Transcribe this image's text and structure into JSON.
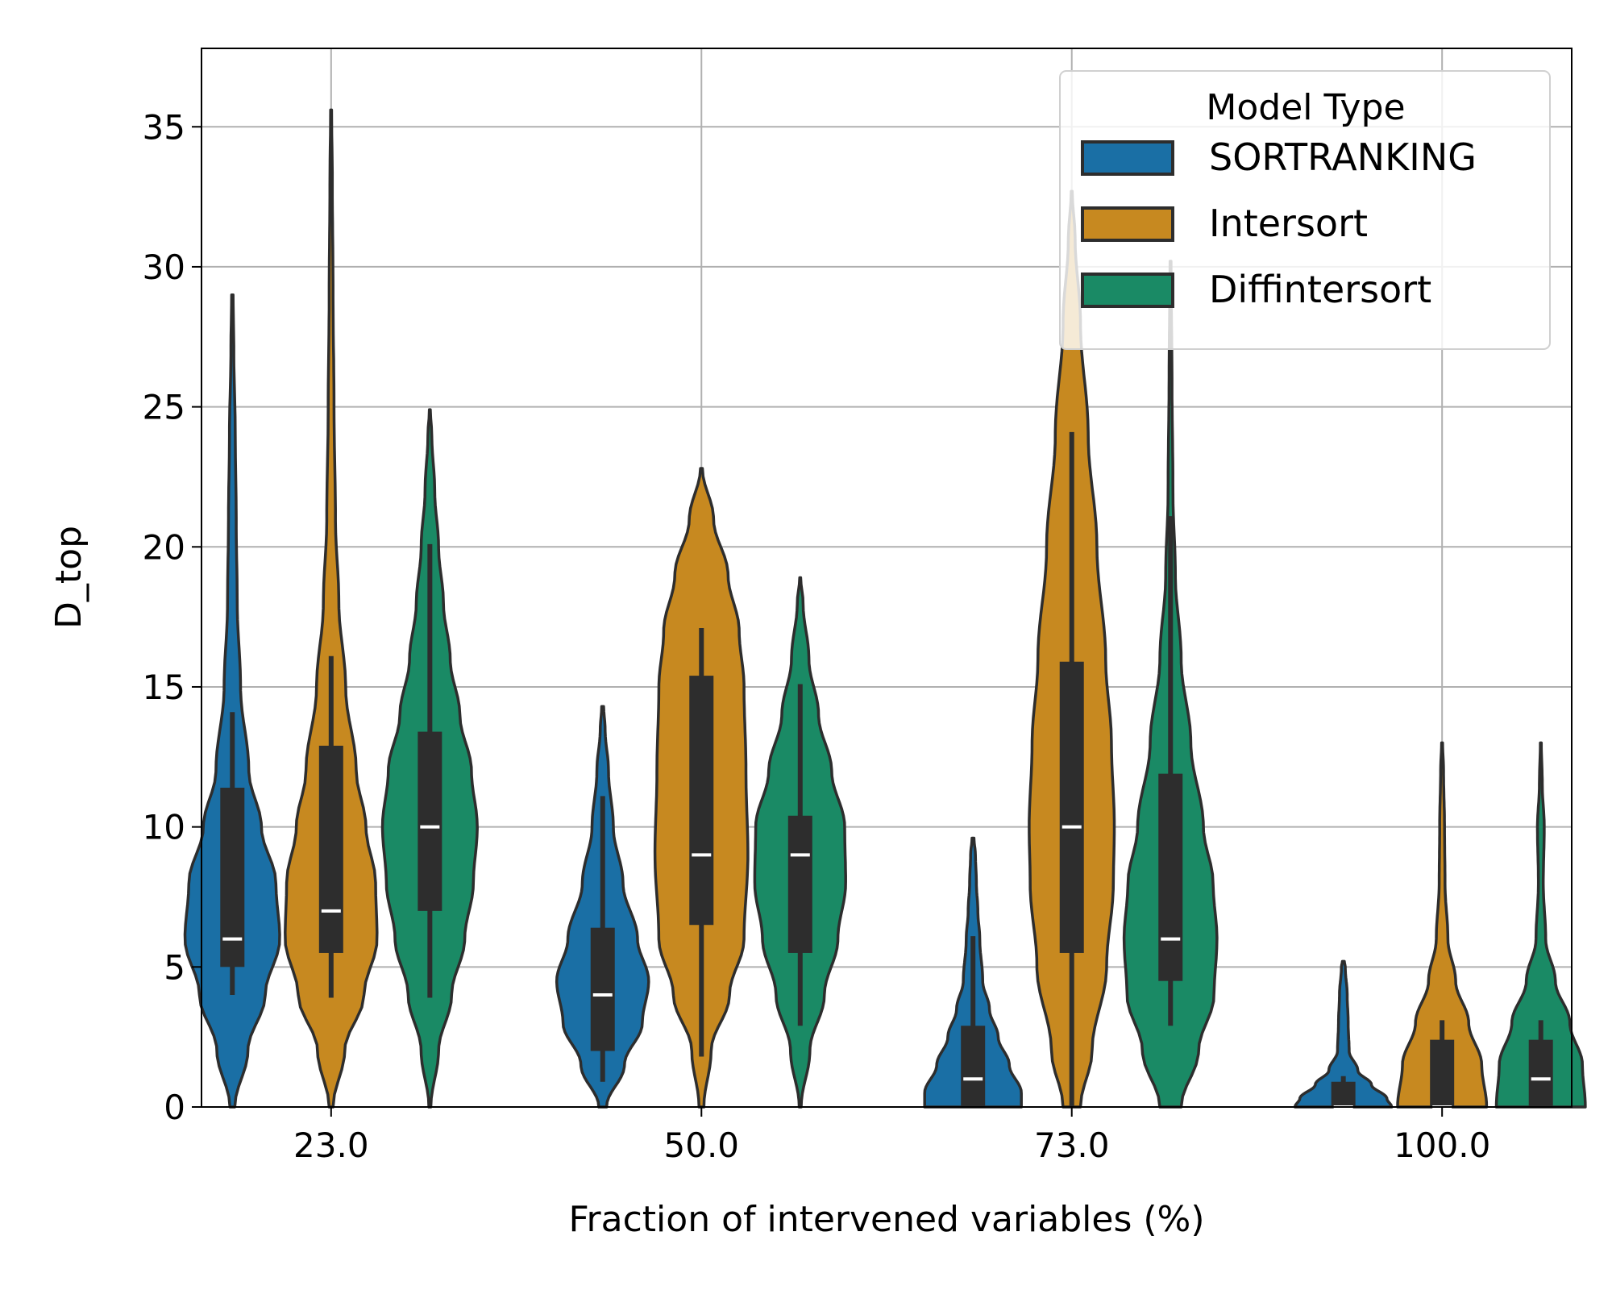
{
  "chart_data": {
    "type": "violin",
    "title": "",
    "xlabel": "Fraction of intervened variables (%)",
    "ylabel": "D_top",
    "ylim": [
      0,
      37.8
    ],
    "yticks": [
      0,
      5,
      10,
      15,
      20,
      25,
      30,
      35
    ],
    "grid": true,
    "categories": [
      "23.0",
      "50.0",
      "73.0",
      "100.0"
    ],
    "legend": {
      "title": "Model Type",
      "position": "top-right"
    },
    "series": [
      {
        "name": "SORTRANKING",
        "color": "#1a6fa5",
        "groups": [
          {
            "min": 4,
            "q1": 5,
            "median": 6,
            "q3": 11.4,
            "max": 14.1,
            "violin_min": 0,
            "violin_max": 29,
            "profile": [
              [
                0,
                0.05
              ],
              [
                2,
                0.32
              ],
              [
                4,
                0.68
              ],
              [
                6,
                0.98
              ],
              [
                8,
                0.9
              ],
              [
                10,
                0.6
              ],
              [
                12,
                0.34
              ],
              [
                15,
                0.17
              ],
              [
                18,
                0.1
              ],
              [
                21,
                0.08
              ],
              [
                24,
                0.06
              ],
              [
                27,
                0.03
              ],
              [
                29,
                0.015
              ]
            ]
          },
          {
            "min": 0.9,
            "q1": 2,
            "median": 4,
            "q3": 6.4,
            "max": 11.1,
            "violin_min": 0,
            "violin_max": 14.3,
            "profile": [
              [
                0,
                0.08
              ],
              [
                1.5,
                0.45
              ],
              [
                3,
                0.82
              ],
              [
                4.5,
                0.95
              ],
              [
                6,
                0.72
              ],
              [
                8,
                0.42
              ],
              [
                10,
                0.22
              ],
              [
                12,
                0.12
              ],
              [
                13.5,
                0.05
              ],
              [
                14.3,
                0.02
              ]
            ]
          },
          {
            "min": 0,
            "q1": 0,
            "median": 1,
            "q3": 2.9,
            "max": 6.1,
            "violin_min": 0,
            "violin_max": 9.6,
            "profile": [
              [
                0,
                1.0
              ],
              [
                0.5,
                1.0
              ],
              [
                1.5,
                0.75
              ],
              [
                2.5,
                0.52
              ],
              [
                3.5,
                0.34
              ],
              [
                4.5,
                0.2
              ],
              [
                6,
                0.14
              ],
              [
                7,
                0.1
              ],
              [
                8,
                0.07
              ],
              [
                9,
                0.05
              ],
              [
                9.6,
                0.02
              ]
            ]
          },
          {
            "min": 0,
            "q1": 0,
            "median": 0,
            "q3": 0.9,
            "max": 1.1,
            "violin_min": 0,
            "violin_max": 5.2,
            "profile": [
              [
                0,
                1.0
              ],
              [
                0.3,
                0.9
              ],
              [
                0.8,
                0.58
              ],
              [
                1.3,
                0.3
              ],
              [
                2,
                0.12
              ],
              [
                3,
                0.1
              ],
              [
                4,
                0.08
              ],
              [
                5,
                0.04
              ],
              [
                5.2,
                0.02
              ]
            ]
          }
        ]
      },
      {
        "name": "Intersort",
        "color": "#c78920",
        "groups": [
          {
            "min": 3.9,
            "q1": 5.5,
            "median": 7,
            "q3": 12.9,
            "max": 16.1,
            "violin_min": 0,
            "violin_max": 35.6,
            "profile": [
              [
                0,
                0.04
              ],
              [
                2,
                0.28
              ],
              [
                4,
                0.68
              ],
              [
                6,
                0.95
              ],
              [
                8,
                0.92
              ],
              [
                10,
                0.72
              ],
              [
                12,
                0.52
              ],
              [
                15,
                0.3
              ],
              [
                18,
                0.16
              ],
              [
                21,
                0.09
              ],
              [
                25,
                0.06
              ],
              [
                29,
                0.04
              ],
              [
                33,
                0.025
              ],
              [
                35.6,
                0.01
              ]
            ]
          },
          {
            "min": 1.8,
            "q1": 6.5,
            "median": 9,
            "q3": 15.4,
            "max": 17.1,
            "violin_min": 0,
            "violin_max": 22.8,
            "profile": [
              [
                0,
                0.05
              ],
              [
                2,
                0.2
              ],
              [
                4,
                0.58
              ],
              [
                6,
                0.88
              ],
              [
                9,
                0.96
              ],
              [
                12,
                0.92
              ],
              [
                15,
                0.88
              ],
              [
                17,
                0.78
              ],
              [
                19,
                0.55
              ],
              [
                21,
                0.25
              ],
              [
                22.8,
                0.02
              ]
            ]
          },
          {
            "min": 0,
            "q1": 5.5,
            "median": 10,
            "q3": 15.9,
            "max": 24.1,
            "violin_min": 0,
            "violin_max": 32.7,
            "profile": [
              [
                0,
                0.18
              ],
              [
                2,
                0.42
              ],
              [
                5,
                0.72
              ],
              [
                8,
                0.86
              ],
              [
                10,
                0.88
              ],
              [
                13,
                0.82
              ],
              [
                16,
                0.7
              ],
              [
                20,
                0.52
              ],
              [
                24,
                0.34
              ],
              [
                28,
                0.18
              ],
              [
                31,
                0.07
              ],
              [
                32.7,
                0.01
              ]
            ]
          },
          {
            "min": 0,
            "q1": 0,
            "median": 0,
            "q3": 2.4,
            "max": 3.1,
            "violin_min": 0,
            "violin_max": 13,
            "profile": [
              [
                0,
                0.92
              ],
              [
                1.5,
                0.82
              ],
              [
                3,
                0.55
              ],
              [
                4.5,
                0.28
              ],
              [
                6,
                0.12
              ],
              [
                8,
                0.06
              ],
              [
                10,
                0.05
              ],
              [
                12,
                0.03
              ],
              [
                13,
                0.01
              ]
            ]
          }
        ]
      },
      {
        "name": "Diffintersort",
        "color": "#1a8a65",
        "groups": [
          {
            "min": 3.9,
            "q1": 7,
            "median": 10,
            "q3": 13.4,
            "max": 20.1,
            "violin_min": 0,
            "violin_max": 24.9,
            "profile": [
              [
                0,
                0.02
              ],
              [
                2,
                0.18
              ],
              [
                4,
                0.45
              ],
              [
                6,
                0.72
              ],
              [
                8,
                0.9
              ],
              [
                10,
                0.98
              ],
              [
                12,
                0.86
              ],
              [
                14,
                0.62
              ],
              [
                16,
                0.42
              ],
              [
                18,
                0.28
              ],
              [
                20,
                0.18
              ],
              [
                22,
                0.1
              ],
              [
                24,
                0.04
              ],
              [
                24.9,
                0.01
              ]
            ]
          },
          {
            "min": 2.9,
            "q1": 5.5,
            "median": 9,
            "q3": 10.4,
            "max": 15.1,
            "violin_min": 0,
            "violin_max": 18.9,
            "profile": [
              [
                0,
                0.02
              ],
              [
                2,
                0.2
              ],
              [
                4,
                0.5
              ],
              [
                6,
                0.78
              ],
              [
                8,
                0.94
              ],
              [
                10,
                0.92
              ],
              [
                12,
                0.65
              ],
              [
                14,
                0.38
              ],
              [
                16,
                0.18
              ],
              [
                18,
                0.06
              ],
              [
                18.9,
                0.01
              ]
            ]
          },
          {
            "min": 2.9,
            "q1": 4.5,
            "median": 6,
            "q3": 11.9,
            "max": 21.1,
            "violin_min": 0,
            "violin_max": 30.2,
            "profile": [
              [
                0,
                0.22
              ],
              [
                2,
                0.58
              ],
              [
                4,
                0.9
              ],
              [
                6,
                0.96
              ],
              [
                8,
                0.88
              ],
              [
                10,
                0.68
              ],
              [
                13,
                0.42
              ],
              [
                16,
                0.22
              ],
              [
                19,
                0.1
              ],
              [
                22,
                0.05
              ],
              [
                26,
                0.03
              ],
              [
                30.2,
                0.01
              ]
            ]
          },
          {
            "min": 0,
            "q1": 0,
            "median": 1,
            "q3": 2.4,
            "max": 3.1,
            "violin_min": 0,
            "violin_max": 13,
            "profile": [
              [
                0,
                0.92
              ],
              [
                1.5,
                0.86
              ],
              [
                3,
                0.6
              ],
              [
                4.5,
                0.3
              ],
              [
                6,
                0.1
              ],
              [
                8,
                0.05
              ],
              [
                10,
                0.07
              ],
              [
                11.5,
                0.03
              ],
              [
                13,
                0.01
              ]
            ]
          }
        ]
      }
    ]
  }
}
